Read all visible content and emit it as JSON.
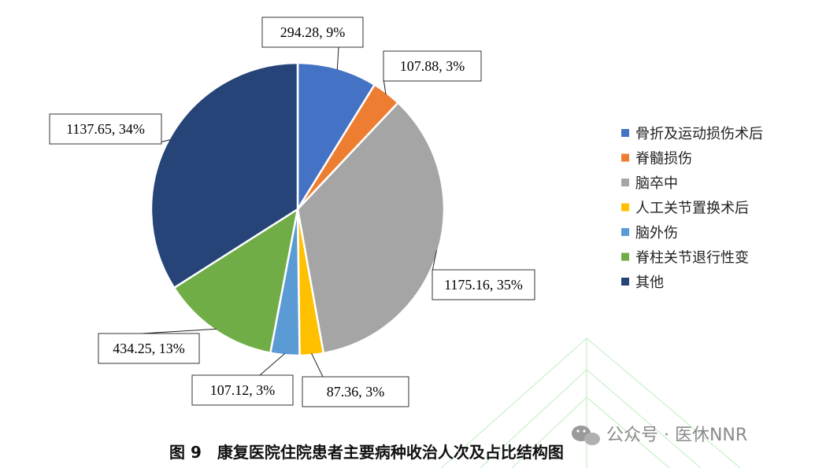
{
  "chart_data": {
    "type": "pie",
    "title": "",
    "series": [
      {
        "name": "骨折及运动损伤术后",
        "value": 294.28,
        "label": "294.28, 9%",
        "color": "#4472C4"
      },
      {
        "name": "脊髓损伤",
        "value": 107.88,
        "label": "107.88, 3%",
        "color": "#ED7D31"
      },
      {
        "name": "脑卒中",
        "value": 1175.16,
        "label": "1175.16, 35%",
        "color": "#A5A5A5"
      },
      {
        "name": "人工关节置换术后",
        "value": 87.36,
        "label": "87.36, 3%",
        "color": "#FFC000"
      },
      {
        "name": "脑外伤",
        "value": 107.12,
        "label": "107.12, 3%",
        "color": "#5B9BD5"
      },
      {
        "name": "脊柱关节退行性变",
        "value": 434.25,
        "label": "434.25, 13%",
        "color": "#70AD47"
      },
      {
        "name": "其他",
        "value": 1137.65,
        "label": "1137.65, 34%",
        "color": "#264478"
      }
    ],
    "legend_position": "right"
  },
  "caption": "图 9　康复医院住院患者主要病种收治人次及占比结构图",
  "watermark": {
    "text": "公众号 · 医休NNR",
    "icon": "wechat-icon"
  }
}
